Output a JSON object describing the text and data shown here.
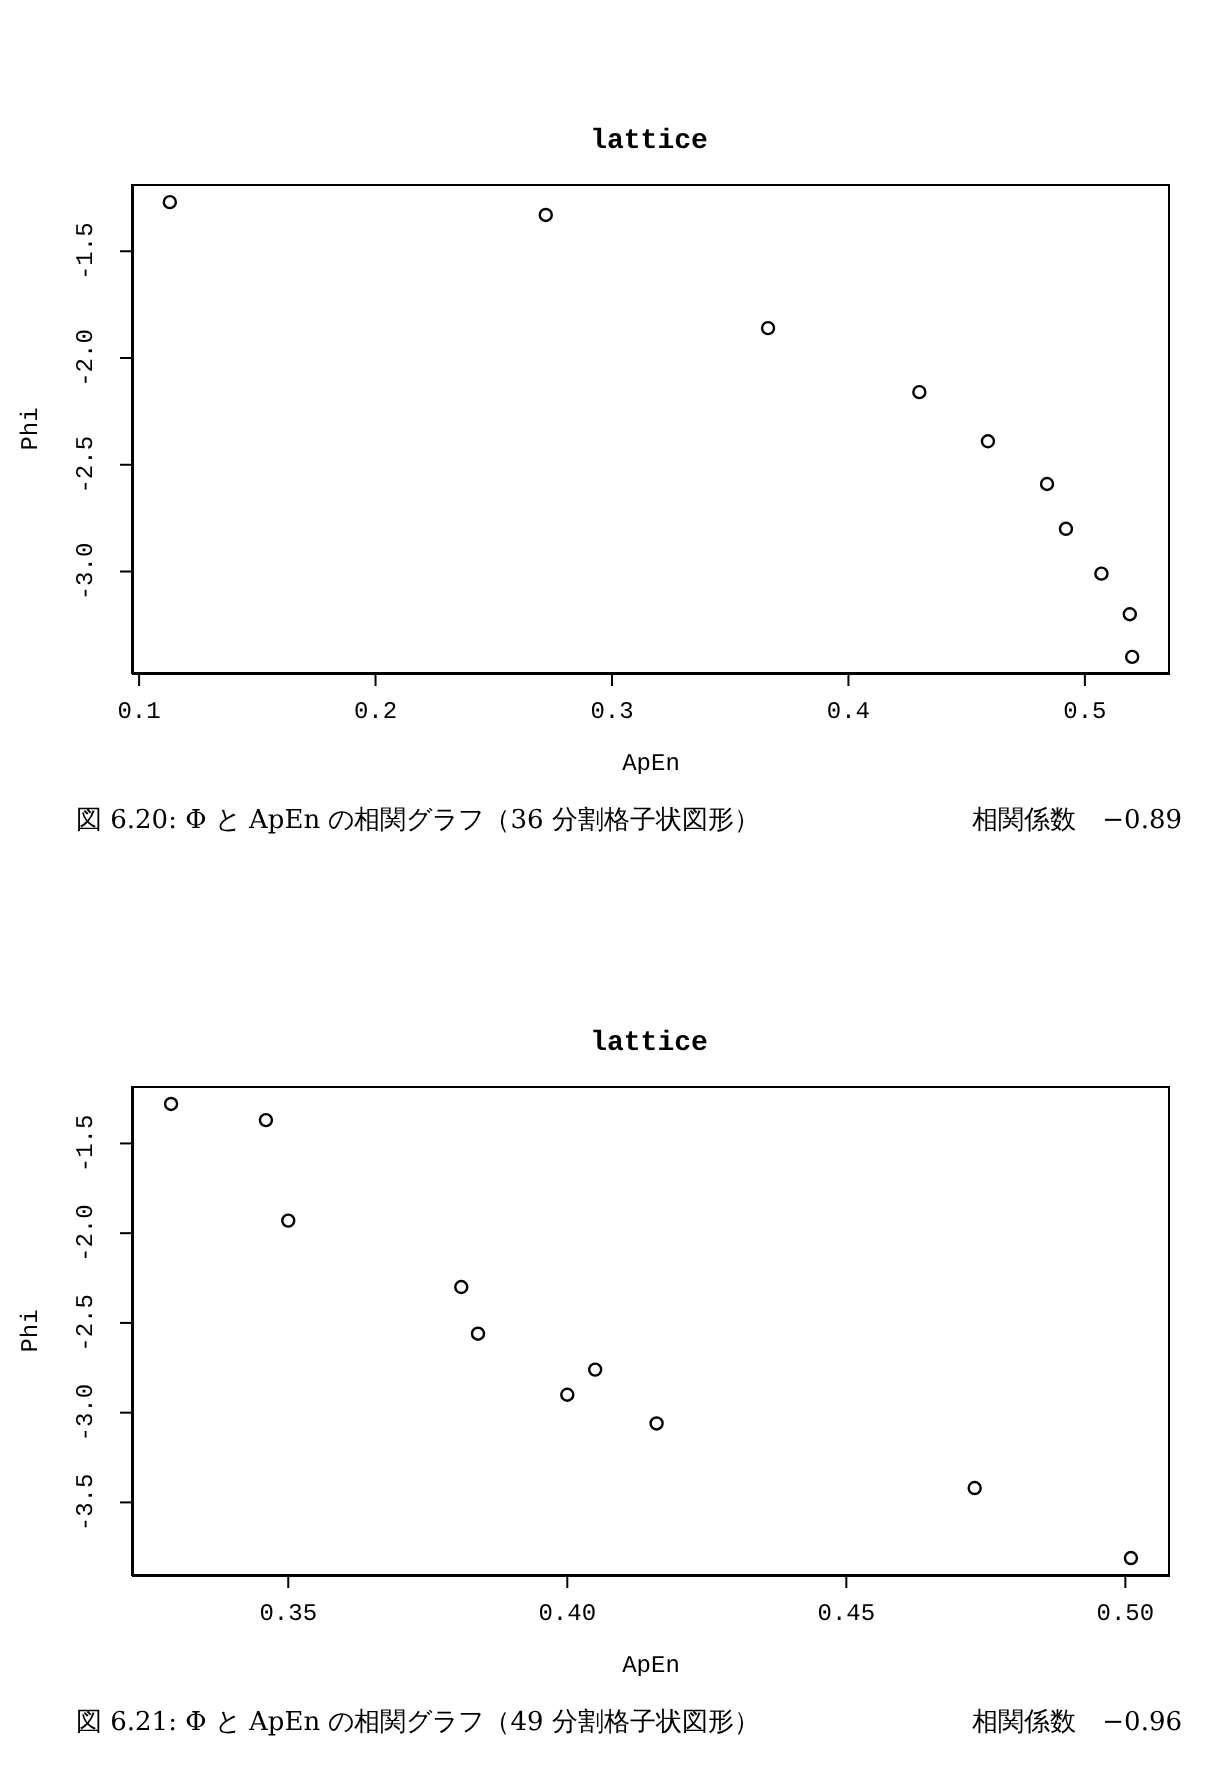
{
  "chart_data": [
    {
      "type": "scatter",
      "title": "lattice",
      "xlabel": "ApEn",
      "ylabel": "Phi",
      "marker": "circle",
      "grid": false,
      "legend": false,
      "xlim": [
        0.097,
        0.536
      ],
      "xticks": [
        {
          "value": 0.1,
          "label": "0.1"
        },
        {
          "value": 0.2,
          "label": "0.2"
        },
        {
          "value": 0.3,
          "label": "0.3"
        },
        {
          "value": 0.4,
          "label": "0.4"
        },
        {
          "value": 0.5,
          "label": "0.5"
        }
      ],
      "ylim": [
        -3.48,
        -1.185
      ],
      "yticks": [
        {
          "value": -1.5,
          "label": "-1.5"
        },
        {
          "value": -2,
          "label": "-2.0"
        },
        {
          "value": -2.5,
          "label": "-2.5"
        },
        {
          "value": -3,
          "label": "-3.0"
        }
      ],
      "series": [
        {
          "color": "#000000",
          "x": [
            0.113,
            0.272,
            0.366,
            0.43,
            0.459,
            0.484,
            0.492,
            0.507,
            0.519,
            0.52
          ],
          "values": [
            -1.27,
            -1.33,
            -1.86,
            -2.16,
            -2.39,
            -2.59,
            -2.8,
            -3.01,
            -3.2,
            -3.4
          ]
        }
      ],
      "annotations": [
        "図 6.20: Φ と ApEn の相関グラフ（36 分割格子状図形）",
        "相関係数　−0.89"
      ]
    },
    {
      "type": "scatter",
      "title": "lattice",
      "xlabel": "ApEn",
      "ylabel": "Phi",
      "marker": "circle",
      "grid": false,
      "legend": false,
      "xlim": [
        0.322,
        0.508
      ],
      "xticks": [
        {
          "value": 0.35,
          "label": "0.35"
        },
        {
          "value": 0.4,
          "label": "0.40"
        },
        {
          "value": 0.45,
          "label": "0.45"
        },
        {
          "value": 0.5,
          "label": "0.50"
        }
      ],
      "ylim": [
        -3.91,
        -1.18
      ],
      "yticks": [
        {
          "value": -1.5,
          "label": "-1.5"
        },
        {
          "value": -2,
          "label": "-2.0"
        },
        {
          "value": -2.5,
          "label": "-2.5"
        },
        {
          "value": -3,
          "label": "-3.0"
        },
        {
          "value": -3.5,
          "label": "-3.5"
        }
      ],
      "series": [
        {
          "color": "#000000",
          "x": [
            0.329,
            0.346,
            0.35,
            0.381,
            0.384,
            0.4,
            0.405,
            0.416,
            0.473,
            0.501
          ],
          "values": [
            -1.28,
            -1.37,
            -1.93,
            -2.3,
            -2.56,
            -2.9,
            -2.76,
            -3.06,
            -3.42,
            -3.81
          ]
        }
      ],
      "annotations": [
        "図 6.21: Φ と ApEn の相関グラフ（49 分割格子状図形）",
        "相関係数　−0.96"
      ]
    }
  ]
}
